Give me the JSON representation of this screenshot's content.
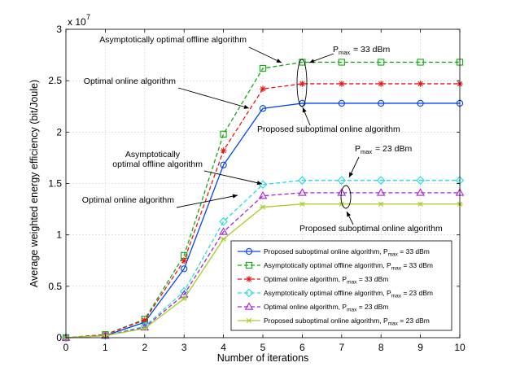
{
  "chart_data": {
    "type": "line",
    "xlabel": "Number of iterations",
    "ylabel": "Average weighted energy efficiency (bit/Joule)",
    "xlim": [
      0,
      10
    ],
    "ylim": [
      0,
      3
    ],
    "y_scale_label": "x 10",
    "y_scale_exponent": "7",
    "x_ticks": [
      "0",
      "1",
      "2",
      "3",
      "4",
      "5",
      "6",
      "7",
      "8",
      "9",
      "10"
    ],
    "y_ticks": [
      "0",
      "0.5",
      "1",
      "1.5",
      "2",
      "2.5",
      "3"
    ],
    "x": [
      0,
      1,
      2,
      3,
      4,
      5,
      6,
      7,
      8,
      9,
      10
    ],
    "series": [
      {
        "name": "Proposed suboptimal online algorithm",
        "pmax_value": "= 33 dBm",
        "color": "#0044ee",
        "dash": "solid",
        "marker": "circle",
        "values": [
          0.0,
          0.02,
          0.15,
          0.67,
          1.68,
          2.23,
          2.28,
          2.28,
          2.28,
          2.28,
          2.28
        ]
      },
      {
        "name": "Asymptotically optimal offline algorithm",
        "pmax_value": "= 33 dBm",
        "color": "#11aa11",
        "dash": "dashed",
        "marker": "square",
        "values": [
          0.0,
          0.03,
          0.18,
          0.8,
          1.98,
          2.62,
          2.68,
          2.68,
          2.68,
          2.68,
          2.68
        ]
      },
      {
        "name": "Optimal online algorithm",
        "pmax_value": "= 33 dBm",
        "color": "#ee1111",
        "dash": "dashed",
        "marker": "asterisk",
        "values": [
          0.0,
          0.03,
          0.17,
          0.75,
          1.82,
          2.42,
          2.47,
          2.47,
          2.47,
          2.47,
          2.47
        ]
      },
      {
        "name": "Asymptotically optimal offline algorithm",
        "pmax_value": "= 23 dBm",
        "color": "#22dddd",
        "dash": "dashed",
        "marker": "diamond",
        "values": [
          0.0,
          0.02,
          0.11,
          0.45,
          1.13,
          1.49,
          1.53,
          1.53,
          1.53,
          1.53,
          1.53
        ]
      },
      {
        "name": "Optimal online algorithm",
        "pmax_value": "= 23 dBm",
        "color": "#aa22dd",
        "dash": "dashed",
        "marker": "triangle",
        "values": [
          0.0,
          0.02,
          0.1,
          0.42,
          1.03,
          1.38,
          1.41,
          1.41,
          1.41,
          1.41,
          1.41
        ]
      },
      {
        "name": "Proposed suboptimal online algorithm",
        "pmax_value": "= 23 dBm",
        "color": "#aacc22",
        "dash": "solid",
        "marker": "star",
        "values": [
          0.0,
          0.02,
          0.09,
          0.38,
          0.96,
          1.27,
          1.3,
          1.3,
          1.3,
          1.3,
          1.3
        ]
      }
    ],
    "annotations": [
      {
        "text": "Asymptotically optimal offline algorithm"
      },
      {
        "text": "Optimal online algorithm"
      },
      {
        "text": "Proposed suboptimal online algorithm"
      },
      {
        "text": "Asymptotically"
      },
      {
        "text": "optimal offline algorithm"
      },
      {
        "text": "Optimal online algorithm"
      },
      {
        "text": "Proposed suboptimal online algorithm"
      }
    ],
    "pmax_labels": [
      {
        "prefix": "P",
        "sub": "max",
        "value": "= 33 dBm"
      },
      {
        "prefix": "P",
        "sub": "max",
        "value": "= 23 dBm"
      }
    ],
    "legend": {
      "position": "bottom-right",
      "pmax_prefix": "P",
      "pmax_sub": "max"
    }
  }
}
